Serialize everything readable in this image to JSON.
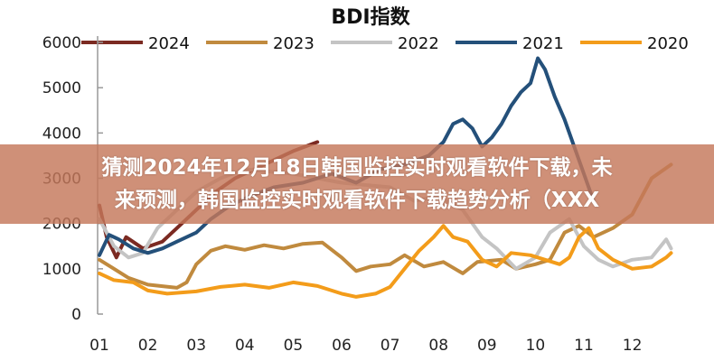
{
  "banner": {
    "line1": "猜测2024年12月18日韩国监控实时观看软件下载，未",
    "line2": "来预测，韩国监控实时观看软件下载趋势分析（XXX"
  },
  "chart_data": {
    "type": "line",
    "title": "BDI指数",
    "xlabel": "",
    "ylabel": "",
    "ylim": [
      0,
      6000
    ],
    "xlim": [
      1,
      12.8
    ],
    "yticks": [
      0,
      1000,
      2000,
      3000,
      4000,
      5000,
      6000
    ],
    "xticks": [
      "01",
      "02",
      "03",
      "04",
      "05",
      "06",
      "07",
      "08",
      "09",
      "10",
      "11",
      "12"
    ],
    "legend_position": "top",
    "grid": false,
    "series": [
      {
        "name": "2024",
        "color": "#7b2a22",
        "points": [
          [
            1,
            2400
          ],
          [
            1.15,
            1700
          ],
          [
            1.35,
            1250
          ],
          [
            1.55,
            1700
          ],
          [
            1.9,
            1450
          ],
          [
            2.3,
            1600
          ],
          [
            2.6,
            1900
          ],
          [
            3.0,
            2300
          ],
          [
            3.4,
            2700
          ],
          [
            3.8,
            3000
          ],
          [
            4.2,
            3200
          ],
          [
            4.6,
            3400
          ],
          [
            5.0,
            3600
          ],
          [
            5.5,
            3800
          ]
        ]
      },
      {
        "name": "2023",
        "color": "#c08a3e",
        "points": [
          [
            1,
            1200
          ],
          [
            1.3,
            1000
          ],
          [
            1.6,
            800
          ],
          [
            2,
            650
          ],
          [
            2.6,
            580
          ],
          [
            2.8,
            700
          ],
          [
            3.0,
            1100
          ],
          [
            3.3,
            1400
          ],
          [
            3.6,
            1500
          ],
          [
            4,
            1420
          ],
          [
            4.4,
            1520
          ],
          [
            4.8,
            1450
          ],
          [
            5.2,
            1550
          ],
          [
            5.6,
            1580
          ],
          [
            6,
            1250
          ],
          [
            6.3,
            950
          ],
          [
            6.6,
            1050
          ],
          [
            7,
            1100
          ],
          [
            7.3,
            1300
          ],
          [
            7.7,
            1050
          ],
          [
            8.1,
            1150
          ],
          [
            8.5,
            900
          ],
          [
            8.8,
            1150
          ],
          [
            9.3,
            1200
          ],
          [
            9.6,
            1000
          ],
          [
            10,
            1100
          ],
          [
            10.3,
            1200
          ],
          [
            10.6,
            1800
          ],
          [
            10.9,
            1950
          ],
          [
            11.2,
            1700
          ],
          [
            11.6,
            1900
          ],
          [
            12,
            2200
          ],
          [
            12.4,
            3000
          ],
          [
            12.8,
            3300
          ]
        ]
      },
      {
        "name": "2022",
        "color": "#c4c4c4",
        "points": [
          [
            1,
            2100
          ],
          [
            1.3,
            1500
          ],
          [
            1.6,
            1250
          ],
          [
            1.9,
            1350
          ],
          [
            2.2,
            1900
          ],
          [
            2.6,
            2300
          ],
          [
            3,
            2700
          ],
          [
            3.5,
            3000
          ],
          [
            4,
            3200
          ],
          [
            5,
            3100
          ],
          [
            6,
            2900
          ],
          [
            7,
            2800
          ],
          [
            7.5,
            2500
          ],
          [
            8,
            2600
          ],
          [
            8.5,
            2300
          ],
          [
            8.9,
            1700
          ],
          [
            9.2,
            1450
          ],
          [
            9.6,
            1000
          ],
          [
            10,
            1250
          ],
          [
            10.3,
            1800
          ],
          [
            10.7,
            2100
          ],
          [
            11,
            1500
          ],
          [
            11.3,
            1200
          ],
          [
            11.6,
            1050
          ],
          [
            12,
            1200
          ],
          [
            12.4,
            1250
          ],
          [
            12.7,
            1650
          ],
          [
            12.8,
            1450
          ]
        ]
      },
      {
        "name": "2021",
        "color": "#24507a",
        "points": [
          [
            1,
            1300
          ],
          [
            1.2,
            1750
          ],
          [
            1.4,
            1650
          ],
          [
            1.7,
            1450
          ],
          [
            2,
            1350
          ],
          [
            2.3,
            1450
          ],
          [
            2.6,
            1600
          ],
          [
            3,
            1800
          ],
          [
            3.3,
            2100
          ],
          [
            3.7,
            2400
          ],
          [
            4.1,
            2600
          ],
          [
            4.6,
            2800
          ],
          [
            5.2,
            2900
          ],
          [
            5.8,
            3100
          ],
          [
            6.3,
            2900
          ],
          [
            6.8,
            3200
          ],
          [
            7.3,
            3300
          ],
          [
            7.8,
            3500
          ],
          [
            8.1,
            3800
          ],
          [
            8.3,
            4200
          ],
          [
            8.5,
            4300
          ],
          [
            8.7,
            4100
          ],
          [
            8.9,
            3700
          ],
          [
            9.1,
            3900
          ],
          [
            9.3,
            4200
          ],
          [
            9.5,
            4600
          ],
          [
            9.7,
            4900
          ],
          [
            9.9,
            5100
          ],
          [
            10.05,
            5650
          ],
          [
            10.2,
            5400
          ],
          [
            10.4,
            4800
          ],
          [
            10.6,
            4300
          ],
          [
            10.8,
            3700
          ],
          [
            11,
            3100
          ],
          [
            11.2,
            2500
          ]
        ]
      },
      {
        "name": "2020",
        "color": "#f39c1a",
        "points": [
          [
            1,
            900
          ],
          [
            1.3,
            750
          ],
          [
            1.7,
            700
          ],
          [
            2,
            520
          ],
          [
            2.4,
            450
          ],
          [
            3,
            500
          ],
          [
            3.5,
            600
          ],
          [
            4,
            650
          ],
          [
            4.5,
            580
          ],
          [
            5,
            700
          ],
          [
            5.5,
            620
          ],
          [
            6,
            450
          ],
          [
            6.3,
            380
          ],
          [
            6.7,
            450
          ],
          [
            7,
            600
          ],
          [
            7.3,
            1000
          ],
          [
            7.6,
            1400
          ],
          [
            7.9,
            1700
          ],
          [
            8.1,
            1950
          ],
          [
            8.3,
            1700
          ],
          [
            8.6,
            1600
          ],
          [
            8.9,
            1200
          ],
          [
            9.2,
            1050
          ],
          [
            9.5,
            1350
          ],
          [
            9.9,
            1300
          ],
          [
            10.2,
            1200
          ],
          [
            10.5,
            1100
          ],
          [
            10.7,
            1250
          ],
          [
            10.9,
            1700
          ],
          [
            11.1,
            1900
          ],
          [
            11.3,
            1450
          ],
          [
            11.6,
            1200
          ],
          [
            12,
            1000
          ],
          [
            12.4,
            1050
          ],
          [
            12.7,
            1250
          ],
          [
            12.8,
            1350
          ]
        ]
      }
    ]
  }
}
